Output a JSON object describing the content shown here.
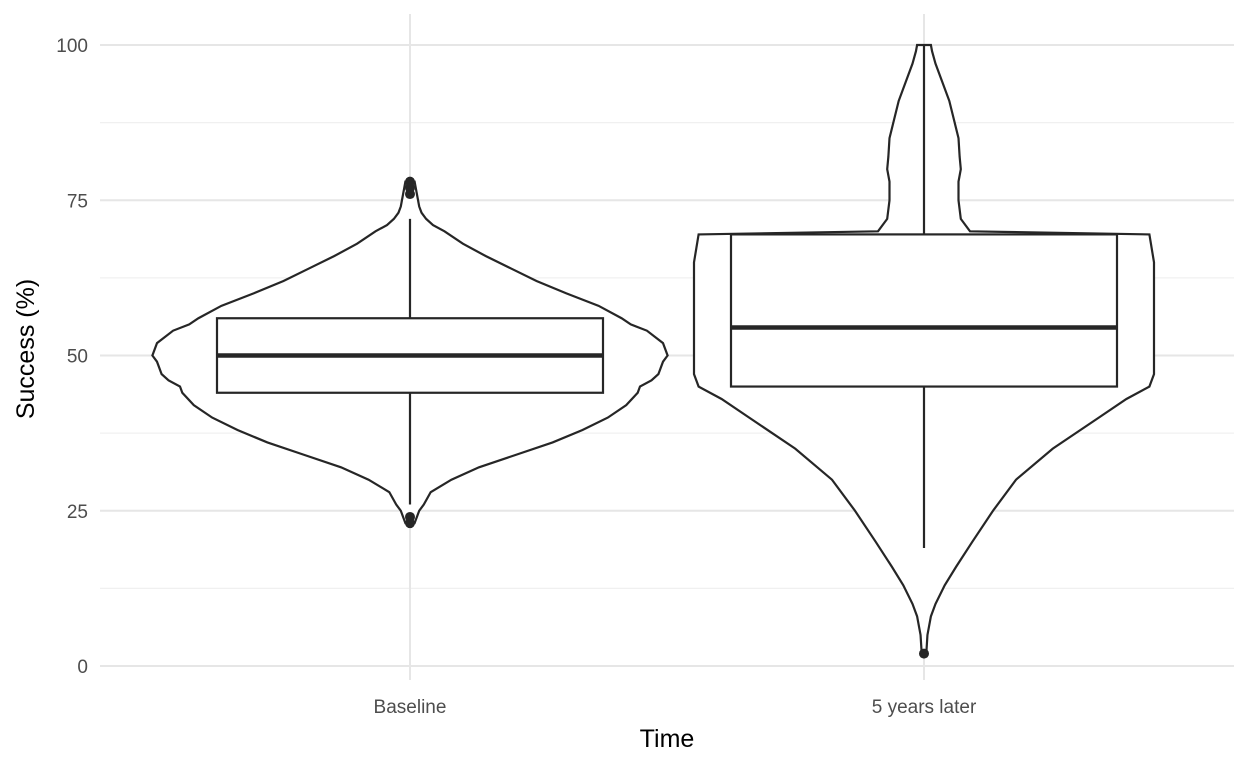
{
  "chart_data": {
    "type": "violin+box",
    "xlabel": "Time",
    "ylabel": "Success (%)",
    "ylim": [
      0,
      100
    ],
    "yticks": [
      0,
      25,
      50,
      75,
      100
    ],
    "grid": true,
    "colors": {
      "line": "#262626",
      "fill": "#ffffff",
      "grid": "#e6e6e6"
    },
    "groups": [
      {
        "category": "Baseline",
        "box": {
          "q1": 44,
          "median": 50,
          "q3": 56,
          "whisker_low": 26,
          "whisker_high": 72
        },
        "outliers": [
          23,
          24,
          76,
          77,
          78
        ],
        "density": [
          [
            23,
            0.02
          ],
          [
            25,
            0.04
          ],
          [
            26,
            0.06
          ],
          [
            28,
            0.09
          ],
          [
            30,
            0.18
          ],
          [
            32,
            0.3
          ],
          [
            34,
            0.46
          ],
          [
            36,
            0.62
          ],
          [
            38,
            0.75
          ],
          [
            40,
            0.86
          ],
          [
            42,
            0.94
          ],
          [
            44,
            0.99
          ],
          [
            45,
            1.0
          ],
          [
            46,
            1.05
          ],
          [
            47,
            1.08
          ],
          [
            49,
            1.1
          ],
          [
            50,
            1.12
          ],
          [
            52,
            1.1
          ],
          [
            54,
            1.03
          ],
          [
            55,
            0.96
          ],
          [
            56,
            0.92
          ],
          [
            58,
            0.82
          ],
          [
            60,
            0.68
          ],
          [
            62,
            0.55
          ],
          [
            64,
            0.44
          ],
          [
            66,
            0.33
          ],
          [
            68,
            0.23
          ],
          [
            70,
            0.15
          ],
          [
            71,
            0.1
          ],
          [
            72,
            0.07
          ],
          [
            73,
            0.05
          ],
          [
            74,
            0.04
          ],
          [
            75,
            0.035
          ],
          [
            76,
            0.03
          ],
          [
            77,
            0.025
          ],
          [
            78,
            0.02
          ]
        ]
      },
      {
        "category": "5 years later",
        "box": {
          "q1": 45,
          "median": 54.5,
          "q3": 69.5,
          "whisker_low": 19,
          "whisker_high": 100
        },
        "outliers": [
          2
        ],
        "density": [
          [
            2,
            0.01
          ],
          [
            5,
            0.015
          ],
          [
            8,
            0.03
          ],
          [
            10,
            0.05
          ],
          [
            13,
            0.09
          ],
          [
            16,
            0.14
          ],
          [
            20,
            0.21
          ],
          [
            25,
            0.3
          ],
          [
            30,
            0.4
          ],
          [
            35,
            0.56
          ],
          [
            40,
            0.76
          ],
          [
            43,
            0.88
          ],
          [
            45,
            0.98
          ],
          [
            47,
            1.0
          ],
          [
            50,
            1.0
          ],
          [
            55,
            1.0
          ],
          [
            60,
            1.0
          ],
          [
            65,
            1.0
          ],
          [
            69.5,
            0.98
          ],
          [
            70,
            0.2
          ],
          [
            72,
            0.16
          ],
          [
            75,
            0.15
          ],
          [
            78,
            0.15
          ],
          [
            80,
            0.16
          ],
          [
            82,
            0.155
          ],
          [
            85,
            0.15
          ],
          [
            88,
            0.13
          ],
          [
            91,
            0.11
          ],
          [
            94,
            0.08
          ],
          [
            97,
            0.05
          ],
          [
            99,
            0.035
          ],
          [
            100,
            0.03
          ]
        ]
      }
    ]
  }
}
